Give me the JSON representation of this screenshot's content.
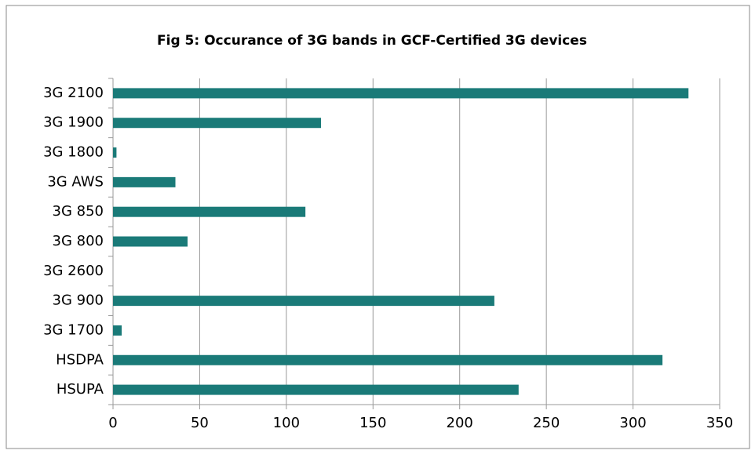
{
  "chart_data": {
    "type": "bar",
    "orientation": "horizontal",
    "title": "Fig 5: Occurance of 3G bands in GCF-Certified 3G devices",
    "categories": [
      "3G 2100",
      "3G 1900",
      "3G 1800",
      "3G AWS",
      "3G 850",
      "3G 800",
      "3G 2600",
      "3G 900",
      "3G 1700",
      "HSDPA",
      "HSUPA"
    ],
    "values": [
      332,
      120,
      2,
      36,
      111,
      43,
      0,
      220,
      5,
      317,
      234
    ],
    "color": "#1a7a78",
    "xlim": [
      0,
      350
    ],
    "xticks": [
      0,
      50,
      100,
      150,
      200,
      250,
      300,
      350
    ],
    "grid": true
  }
}
